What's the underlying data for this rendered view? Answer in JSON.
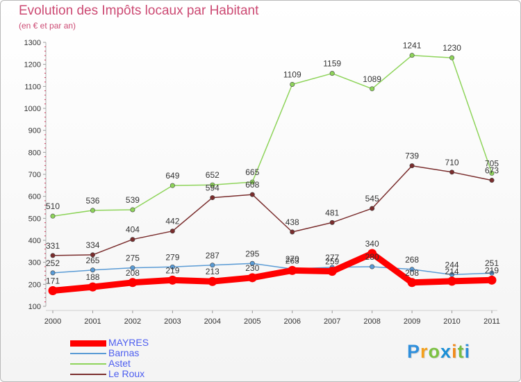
{
  "title": "Evolution des Impôts locaux par Habitant",
  "subtitle": "(en € et par an)",
  "logo": {
    "text": "Proxiti",
    "letters": [
      "P",
      "r",
      "o",
      "x",
      "i",
      "t",
      "i"
    ],
    "colors": [
      "#2f8fdc",
      "#f4a01c",
      "#7cc242",
      "#1b8fd6",
      "#f18a1a",
      "#77bd43",
      "#2a8bd8"
    ]
  },
  "chart_data": {
    "type": "line",
    "title": "Evolution des Impôts locaux par Habitant",
    "subtitle": "(en € et par an)",
    "xlabel": "",
    "ylabel": "",
    "x": [
      "2000",
      "2001",
      "2002",
      "2003",
      "2004",
      "2005",
      "2006",
      "2007",
      "2008",
      "2009",
      "2010",
      "2011"
    ],
    "ylim": [
      100,
      1300
    ],
    "yticks": [
      "100",
      "200",
      "300",
      "400",
      "500",
      "600",
      "700",
      "800",
      "900",
      "1000",
      "1100",
      "1200",
      "1300"
    ],
    "grid": false,
    "legend_position": "bottom-left",
    "series": [
      {
        "name": "MAYRES",
        "color": "#ff0000",
        "values": [
          171,
          188,
          208,
          219,
          213,
          230,
          263,
          259,
          340,
          208,
          214,
          219
        ],
        "labels": [
          "171",
          "188",
          "208",
          "219",
          "213",
          "230",
          "263",
          "259",
          "340",
          "208",
          "214",
          "219"
        ]
      },
      {
        "name": "Barnas",
        "color": "#5a9bd5",
        "values": [
          252,
          265,
          275,
          279,
          287,
          295,
          270,
          277,
          280,
          268,
          244,
          251
        ],
        "labels": [
          "252",
          "265",
          "275",
          "279",
          "287",
          "295",
          "270",
          "277",
          "280",
          "268",
          "244",
          "251"
        ]
      },
      {
        "name": "Astet",
        "color": "#8ed45a",
        "values": [
          510,
          536,
          539,
          649,
          652,
          665,
          1109,
          1159,
          1089,
          1241,
          1230,
          705
        ],
        "labels": [
          "510",
          "536",
          "539",
          "649",
          "652",
          "665",
          "1109",
          "1159",
          "1089",
          "1241",
          "1230",
          "705"
        ]
      },
      {
        "name": "Le Roux",
        "color": "#7a2d2d",
        "values": [
          331,
          334,
          404,
          442,
          594,
          608,
          438,
          481,
          545,
          739,
          710,
          673
        ],
        "labels": [
          "331",
          "334",
          "404",
          "442",
          "594",
          "608",
          "438",
          "481",
          "545",
          "739",
          "710",
          "673"
        ]
      }
    ]
  }
}
